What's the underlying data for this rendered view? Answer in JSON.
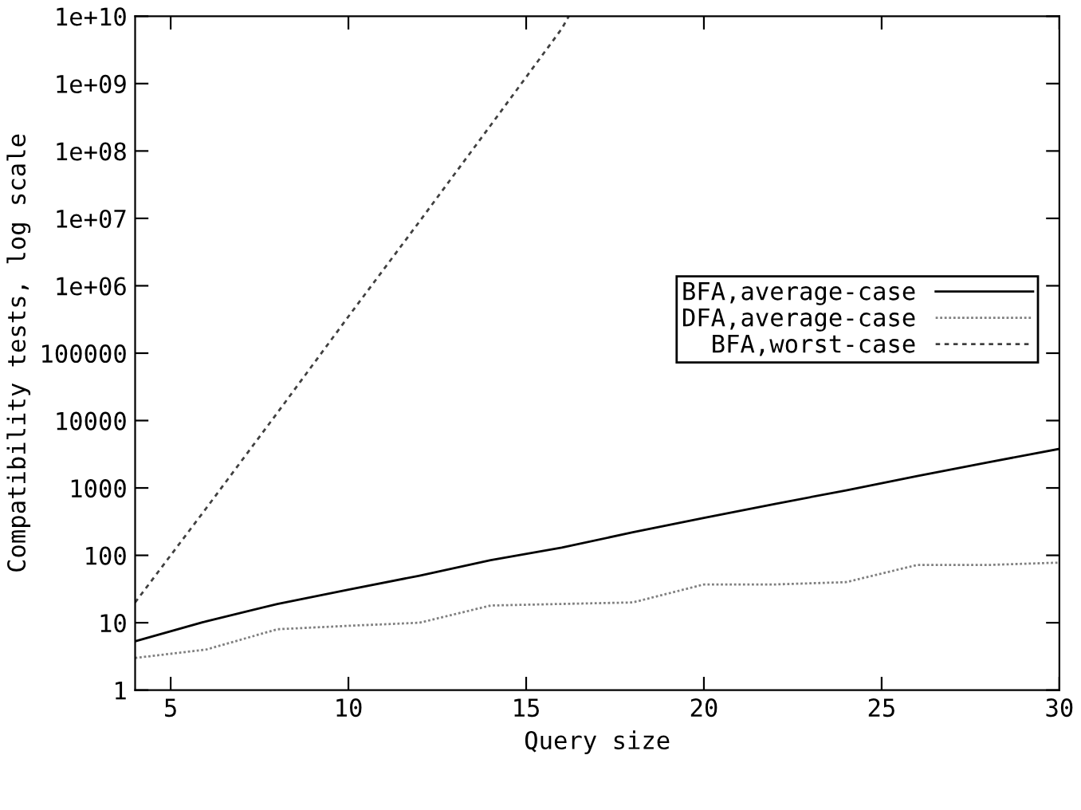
{
  "chart_data": {
    "type": "line",
    "xlabel": "Query size",
    "ylabel": "Compatibility tests, log scale",
    "log": "y",
    "xlim": [
      4,
      30
    ],
    "xticks": [
      5,
      10,
      15,
      20,
      25,
      30
    ],
    "ylim": [
      1,
      10000000000
    ],
    "yticks": [
      1,
      10,
      100,
      1000,
      10000,
      100000,
      {
        "value": 1000000,
        "label": "1e+06"
      },
      {
        "value": 10000000,
        "label": "1e+07"
      },
      {
        "value": 100000000,
        "label": "1e+08"
      },
      {
        "value": 1000000000,
        "label": "1e+09"
      },
      {
        "value": 10000000000,
        "label": "1e+10"
      }
    ],
    "grid": false,
    "legend": "right",
    "marker": "none",
    "series": [
      {
        "name": "BFA,average-case",
        "color": "#000000",
        "line_style": "solid",
        "x": [
          4,
          6,
          8,
          10,
          12,
          14,
          16,
          18,
          20,
          22,
          24,
          26,
          28,
          30
        ],
        "values": [
          5.3,
          10.5,
          19,
          31,
          50,
          85,
          130,
          220,
          360,
          580,
          920,
          1500,
          2400,
          3800
        ]
      },
      {
        "name": "DFA,average-case",
        "color": "#808080",
        "line_style": "dotted",
        "x": [
          4,
          6,
          8,
          10,
          12,
          14,
          16,
          18,
          20,
          22,
          24,
          26,
          28,
          30
        ],
        "values": [
          3,
          4,
          8,
          9,
          10,
          18,
          19,
          20,
          37,
          37,
          40,
          72,
          72,
          78
        ]
      },
      {
        "name": "BFA,worst-case",
        "color": "#404040",
        "line_style": "dashed",
        "x": [
          4,
          6,
          8,
          10,
          12,
          14,
          16,
          16.2
        ],
        "values": [
          20,
          500,
          13000,
          350000,
          9000000,
          240000000,
          6500000000,
          10000000000
        ]
      }
    ]
  }
}
